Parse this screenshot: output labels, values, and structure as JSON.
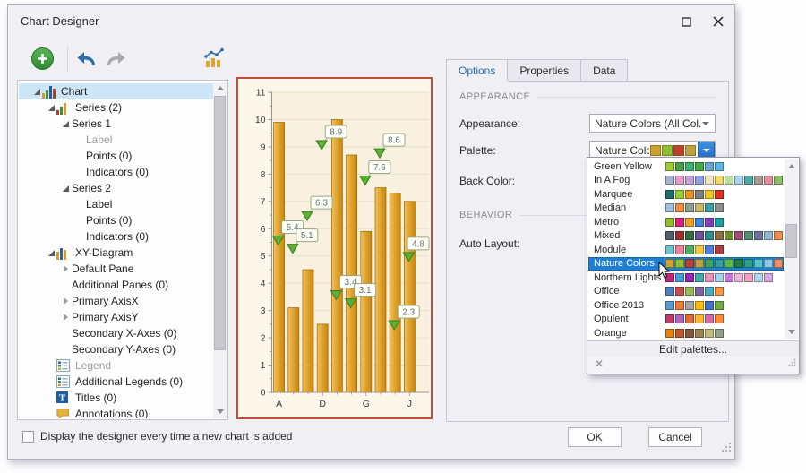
{
  "window": {
    "title": "Chart Designer"
  },
  "tree": {
    "items": [
      {
        "label": "Chart",
        "depth": 0,
        "glyph": "expanded",
        "icon": "chart",
        "selected": true
      },
      {
        "label": "Series (2)",
        "depth": 1,
        "glyph": "expanded",
        "icon": "series"
      },
      {
        "label": "Series 1",
        "depth": 2,
        "glyph": "expanded",
        "icon": "none"
      },
      {
        "label": "Label",
        "depth": 3,
        "glyph": "none",
        "icon": "none",
        "muted": true
      },
      {
        "label": "Points (0)",
        "depth": 3,
        "glyph": "none",
        "icon": "none"
      },
      {
        "label": "Indicators (0)",
        "depth": 3,
        "glyph": "none",
        "icon": "none"
      },
      {
        "label": "Series 2",
        "depth": 2,
        "glyph": "expanded",
        "icon": "none"
      },
      {
        "label": "Label",
        "depth": 3,
        "glyph": "none",
        "icon": "none"
      },
      {
        "label": "Points (0)",
        "depth": 3,
        "glyph": "none",
        "icon": "none"
      },
      {
        "label": "Indicators (0)",
        "depth": 3,
        "glyph": "none",
        "icon": "none"
      },
      {
        "label": "XY-Diagram",
        "depth": 1,
        "glyph": "expanded",
        "icon": "xy"
      },
      {
        "label": "Default Pane",
        "depth": 2,
        "glyph": "collapsed",
        "icon": "none"
      },
      {
        "label": "Additional Panes (0)",
        "depth": 2,
        "glyph": "none",
        "icon": "none"
      },
      {
        "label": "Primary AxisX",
        "depth": 2,
        "glyph": "collapsed",
        "icon": "none"
      },
      {
        "label": "Primary AxisY",
        "depth": 2,
        "glyph": "collapsed",
        "icon": "none"
      },
      {
        "label": "Secondary X-Axes (0)",
        "depth": 2,
        "glyph": "none",
        "icon": "none"
      },
      {
        "label": "Secondary Y-Axes (0)",
        "depth": 2,
        "glyph": "none",
        "icon": "none"
      },
      {
        "label": "Legend",
        "depth": 1,
        "glyph": "none",
        "icon": "legend",
        "muted": true
      },
      {
        "label": "Additional Legends (0)",
        "depth": 1,
        "glyph": "none",
        "icon": "legend"
      },
      {
        "label": "Titles (0)",
        "depth": 1,
        "glyph": "none",
        "icon": "titles"
      },
      {
        "label": "Annotations (0)",
        "depth": 1,
        "glyph": "none",
        "icon": "annotations"
      }
    ]
  },
  "chart_data": {
    "type": "bar",
    "categories": [
      "A",
      "B",
      "C",
      "D",
      "E",
      "F",
      "G",
      "H",
      "I",
      "J"
    ],
    "x_labels_shown": [
      "A",
      "D",
      "G",
      "J"
    ],
    "series": [
      {
        "name": "Series 1",
        "type": "bar",
        "values": [
          9.9,
          3.1,
          4.5,
          2.5,
          10,
          8.7,
          5.9,
          7.5,
          7.3,
          7
        ]
      },
      {
        "name": "Series 2",
        "type": "point",
        "values": [
          5.4,
          5.1,
          6.3,
          8.9,
          3.4,
          3.1,
          7.6,
          8.6,
          2.3,
          4.8
        ],
        "labels": [
          "5.4",
          "5.1",
          "6.3",
          "8.9",
          "3.4",
          "3.1",
          "7.6",
          "8.6",
          "2.3",
          "4.8"
        ]
      }
    ],
    "title": "",
    "xlabel": "",
    "ylabel": "",
    "ylim": [
      0,
      11
    ],
    "ytick_step": 1,
    "grid": true,
    "bar_color": "#e0a52f",
    "marker_color": "#5fae35",
    "plot_bg": "#f8f1df",
    "chart_bg": "#fcf7ea"
  },
  "panel": {
    "tabs": [
      {
        "label": "Options",
        "active": true
      },
      {
        "label": "Properties",
        "active": false
      },
      {
        "label": "Data",
        "active": false
      }
    ],
    "appearance_section": "APPEARANCE",
    "behavior_section": "BEHAVIOR",
    "rows": {
      "appearance_label": "Appearance:",
      "appearance_value": "Nature Colors (All Col...",
      "palette_label": "Palette:",
      "palette_value": "Nature Colors",
      "palette_preview_swatches": [
        "#CF9F2F",
        "#8FBF2F",
        "#BF3F2F",
        "#BF9F3F"
      ],
      "backcolor_label": "Back Color:",
      "autolayout_label": "Auto Layout:"
    }
  },
  "popup": {
    "items": [
      {
        "name": "Green Yellow",
        "swatches": [
          "#9ACD32",
          "#4C9A4C",
          "#3CB371",
          "#44AA44",
          "#6CA6CD",
          "#5BB8E8"
        ]
      },
      {
        "name": "In A Fog",
        "swatches": [
          "#9FB6CD",
          "#E89AC8",
          "#C79FE0",
          "#8F9FE0",
          "#EFE3C0",
          "#EFD96B",
          "#B7E0A0",
          "#A8D3E8",
          "#4FA8A8",
          "#A89B8F",
          "#E08F9B",
          "#8FBF6B"
        ]
      },
      {
        "name": "Marquee",
        "swatches": [
          "#1F6B6B",
          "#9ACD32",
          "#EF8F1F",
          "#7F7F7F",
          "#EFC91F",
          "#DF2F1F"
        ]
      },
      {
        "name": "Median",
        "swatches": [
          "#9FC3DF",
          "#EF8F3F",
          "#8F9F8F",
          "#CBB96B",
          "#3F9F9F",
          "#8F8F8F"
        ]
      },
      {
        "name": "Metro",
        "swatches": [
          "#8FBF2F",
          "#DF1F7F",
          "#EF9F1F",
          "#3F7FDF",
          "#7F3FBF",
          "#1F9F9F"
        ]
      },
      {
        "name": "Mixed",
        "swatches": [
          "#4F5F6F",
          "#9F2F2F",
          "#2F6F3F",
          "#6F4F9F",
          "#2F8F8F",
          "#8F6F3F",
          "#6F8F2F",
          "#9F4F6F",
          "#4F8F6F",
          "#6F6FA0",
          "#8FB7CF",
          "#EF8F4F"
        ]
      },
      {
        "name": "Module",
        "swatches": [
          "#6FC3CF",
          "#EF7F9F",
          "#4FAF5F",
          "#EFC93F",
          "#4F7FDF",
          "#AF3F3F"
        ]
      },
      {
        "name": "Nature Colors",
        "selected": true,
        "swatches": [
          "#CF9F2F",
          "#8FBF2F",
          "#BF3F2F",
          "#BF9F3F",
          "#3FA35F",
          "#2F9F9F",
          "#5FB73F",
          "#1F7F3F",
          "#2F9F83",
          "#4FC7C7",
          "#8FC7E7",
          "#EF8F63"
        ]
      },
      {
        "name": "Northern Lights",
        "swatches": [
          "#C2257E",
          "#3F9FDF",
          "#9426B8",
          "#3FABAB",
          "#F093C0",
          "#A8D3F0",
          "#C878D8",
          "#F0B8D8",
          "#F0A0C0",
          "#B0D8F0",
          "#D8A8E8"
        ]
      },
      {
        "name": "Office",
        "swatches": [
          "#4F81BD",
          "#C0504D",
          "#9BBB59",
          "#8064A2",
          "#4BACC6",
          "#F79646"
        ]
      },
      {
        "name": "Office 2013",
        "swatches": [
          "#5B9BD5",
          "#ED7D31",
          "#A5A5A5",
          "#FFC000",
          "#4472C4",
          "#70AD47"
        ]
      },
      {
        "name": "Opulent",
        "swatches": [
          "#B83D68",
          "#AC66BB",
          "#DE6C36",
          "#F9B639",
          "#CF6DA4",
          "#FA8D3D"
        ]
      },
      {
        "name": "Orange",
        "swatches": [
          "#E48312",
          "#BD582C",
          "#865640",
          "#9B8357",
          "#C2BC80",
          "#94A088"
        ]
      }
    ],
    "edit_button_label": "Edit palettes...",
    "close_label": "✕"
  },
  "footer": {
    "checkbox_label": "Display the designer every time a new chart is added",
    "ok_label": "OK",
    "cancel_label": "Cancel"
  }
}
